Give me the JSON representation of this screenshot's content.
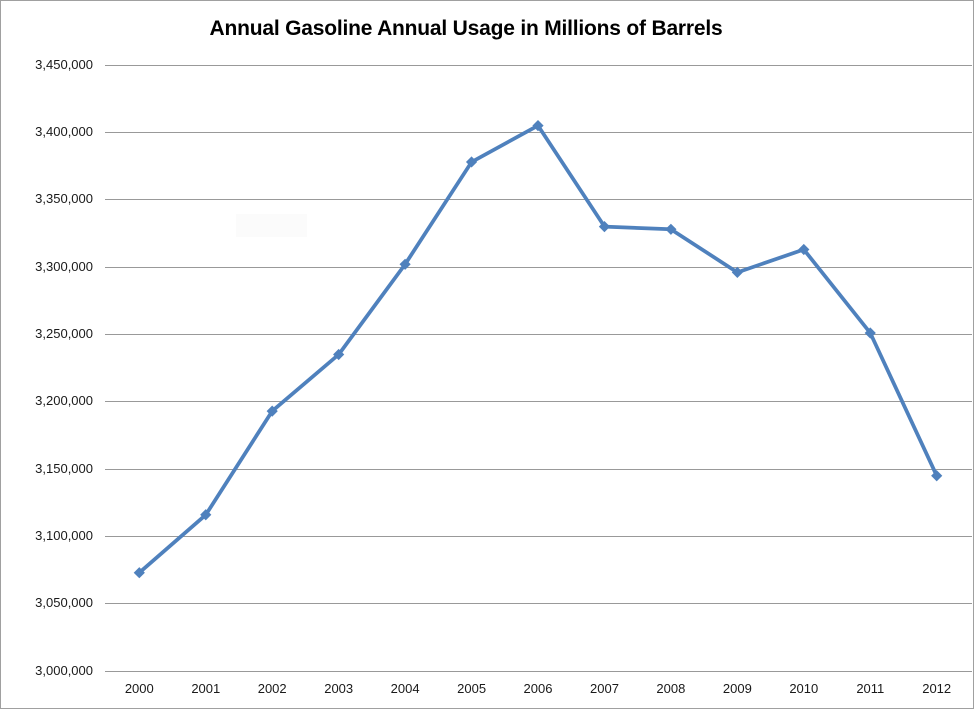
{
  "chart_data": {
    "type": "line",
    "title": "Annual Gasoline Annual Usage in Millions of Barrels",
    "categories": [
      "2000",
      "2001",
      "2002",
      "2003",
      "2004",
      "2005",
      "2006",
      "2007",
      "2008",
      "2009",
      "2010",
      "2011",
      "2012"
    ],
    "values": [
      3073000,
      3116000,
      3193000,
      3235000,
      3302000,
      3378000,
      3405000,
      3330000,
      3328000,
      3296000,
      3313000,
      3251000,
      3145000
    ],
    "marker": "diamond",
    "xlabel": "",
    "ylabel": "",
    "ylim": [
      3000000,
      3450000
    ],
    "ytick_step": 50000,
    "ytick_labels": [
      "3,450,000",
      "3,400,000",
      "3,350,000",
      "3,300,000",
      "3,250,000",
      "3,200,000",
      "3,150,000",
      "3,100,000",
      "3,050,000",
      "3,000,000"
    ],
    "grid": true,
    "legend": false,
    "colors": {
      "line": "#4f81bd",
      "marker": "#4f81bd",
      "gridline": "#999999",
      "chart_border": "#a0a0a0",
      "tick_text": "#1a1a1a",
      "title_text": "#000000",
      "artifact": "#fbfbfb"
    }
  }
}
